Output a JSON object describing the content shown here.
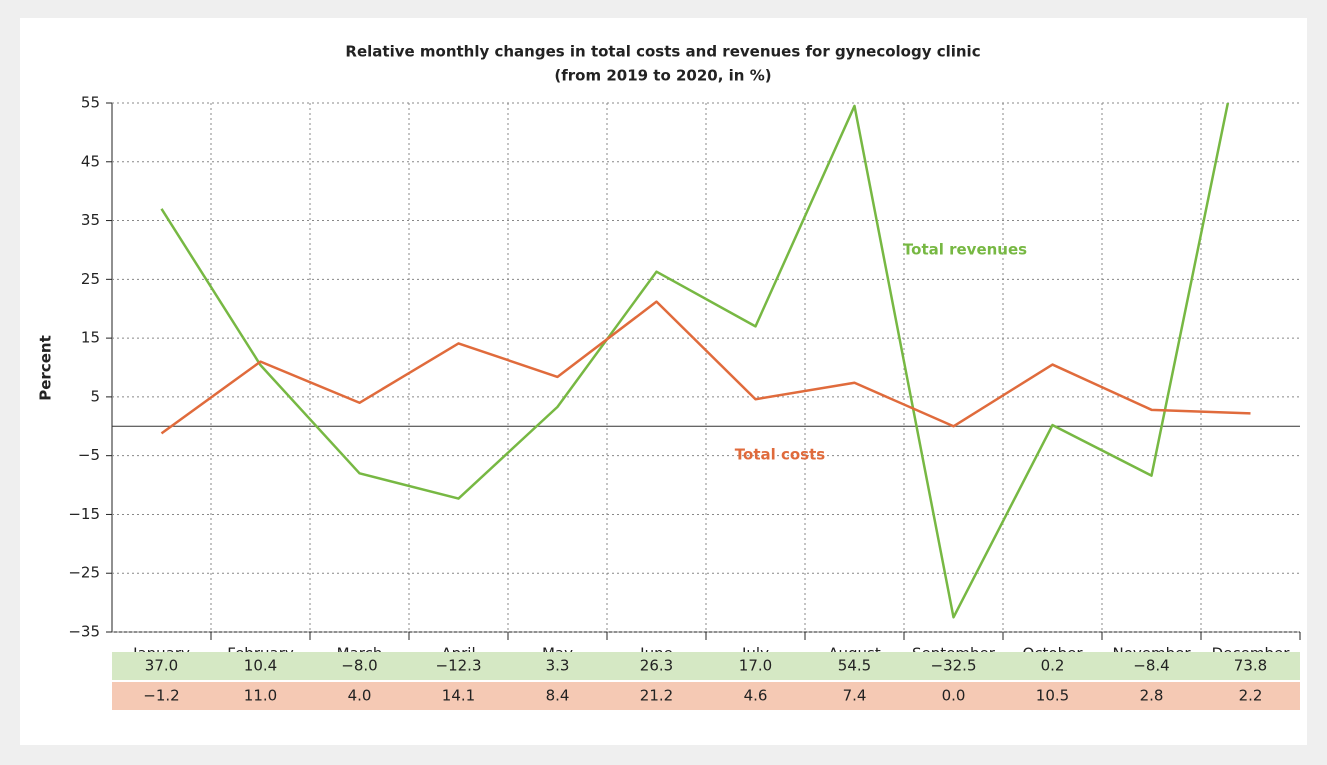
{
  "chart_data": {
    "type": "line",
    "title": "Relative monthly changes in total costs and revenues for gynecology clinic",
    "subtitle": "(from 2019 to 2020, in %)",
    "y_label": "Percent",
    "categories": [
      "January",
      "February",
      "March",
      "April",
      "May",
      "June",
      "July",
      "August",
      "September",
      "October",
      "November",
      "December"
    ],
    "series": [
      {
        "name": "Total revenues",
        "color": "#77b843",
        "table_color": "#d5e8c4",
        "values": [
          37.0,
          10.4,
          -8.0,
          -12.3,
          3.3,
          26.3,
          17.0,
          54.5,
          -32.5,
          0.2,
          -8.4,
          73.8
        ],
        "value_labels": [
          "37.0",
          "10.4",
          "−8.0",
          "−12.3",
          "3.3",
          "26.3",
          "17.0",
          "54.5",
          "−32.5",
          "0.2",
          "−8.4",
          "73.8"
        ]
      },
      {
        "name": "Total costs",
        "color": "#e06b3c",
        "table_color": "#f5c9b4",
        "values": [
          -1.2,
          11.0,
          4.0,
          14.1,
          8.4,
          21.2,
          4.6,
          7.4,
          0.0,
          10.5,
          2.8,
          2.2
        ],
        "value_labels": [
          "−1.2",
          "11.0",
          "4.0",
          "14.1",
          "8.4",
          "21.2",
          "4.6",
          "7.4",
          "0.0",
          "10.5",
          "2.8",
          "2.2"
        ]
      }
    ],
    "ylim": [
      -35,
      55
    ],
    "yticks": [
      {
        "value": -35,
        "label": "−35"
      },
      {
        "value": -25,
        "label": "−25"
      },
      {
        "value": -15,
        "label": "−15"
      },
      {
        "value": -5,
        "label": "−5"
      },
      5,
      15,
      25,
      35,
      45,
      55
    ],
    "grid": true
  }
}
